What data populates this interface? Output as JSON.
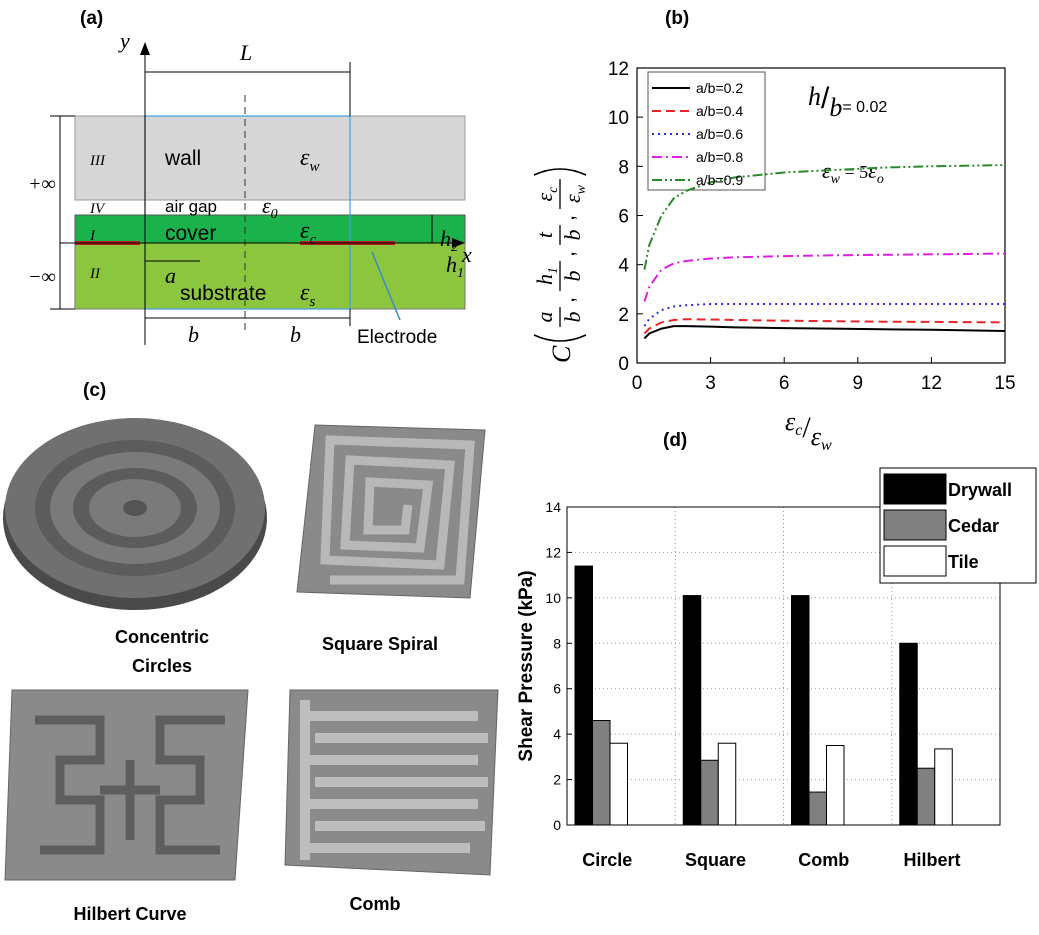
{
  "panel_labels": [
    "(a)",
    "(b)",
    "(c)",
    "(d)"
  ],
  "diagram": {
    "y_axis": "y",
    "x_axis": "x",
    "length": "L",
    "half_width": "a",
    "spacing_left": "b",
    "spacing_right": "b",
    "plus_inf": "+∞",
    "minus_inf": "−∞",
    "regions": [
      {
        "numeral": "III",
        "name": "wall",
        "permittivity": {
          "symbol": "ε",
          "sub": "w"
        }
      },
      {
        "numeral": "IV",
        "name": "air gap",
        "permittivity": {
          "symbol": "ε",
          "sub": "0"
        }
      },
      {
        "numeral": "I",
        "name": "cover",
        "permittivity": {
          "symbol": "ε",
          "sub": "c"
        }
      },
      {
        "numeral": "II",
        "name": "substrate",
        "permittivity": {
          "symbol": "ε",
          "sub": "s"
        }
      }
    ],
    "h2": {
      "symbol": "h",
      "sub": "2"
    },
    "h1": {
      "symbol": "h",
      "sub": "1"
    },
    "electrode": "Electrode"
  },
  "designs": [
    "Concentric",
    "Circles",
    "Square Spiral",
    "Hilbert Curve",
    "Comb"
  ],
  "chart_data": [
    {
      "type": "line",
      "x_label": {
        "num": "ε",
        "num_sub": "c",
        "slash": "/",
        "den": "ε",
        "den_sub": "w"
      },
      "y_label": {
        "function": "C",
        "separator": ",",
        "fractions": [
          {
            "num": "a",
            "den": "b"
          },
          {
            "num": "h",
            "num_sub": "1",
            "den": "b"
          },
          {
            "num": "t",
            "den": "b"
          },
          {
            "num": "ε",
            "num_sub": "c",
            "den": "ε",
            "den_sub": "w"
          }
        ]
      },
      "annotations": {
        "ratio": {
          "num": "h",
          "slash": "/",
          "den": "b",
          "rest": "= 0.02"
        },
        "wall_permittivity": {
          "symbol": "ε",
          "sub": "w",
          "rest": " = 5",
          "symbol2": "ε",
          "sub2": "o"
        }
      },
      "x": [
        0.3,
        0.5,
        1,
        1.5,
        2,
        3,
        4,
        6,
        8,
        10,
        12,
        15
      ],
      "series": [
        {
          "name": "a/b=0.2",
          "color": "#000000",
          "dash": "solid",
          "values": [
            1.0,
            1.2,
            1.4,
            1.5,
            1.5,
            1.48,
            1.45,
            1.42,
            1.4,
            1.37,
            1.35,
            1.3
          ]
        },
        {
          "name": "a/b=0.4",
          "color": "#e8262a",
          "dash": "dashed",
          "values": [
            1.2,
            1.4,
            1.65,
            1.75,
            1.78,
            1.77,
            1.75,
            1.72,
            1.7,
            1.68,
            1.67,
            1.65
          ]
        },
        {
          "name": "a/b=0.6",
          "color": "#2b2bd8",
          "dash": "dotted",
          "values": [
            1.5,
            1.8,
            2.15,
            2.3,
            2.35,
            2.4,
            2.4,
            2.4,
            2.4,
            2.4,
            2.4,
            2.4
          ]
        },
        {
          "name": "a/b=0.8",
          "color": "#e020e0",
          "dash": "dashdot",
          "values": [
            2.5,
            3.1,
            3.8,
            4.05,
            4.15,
            4.25,
            4.3,
            4.35,
            4.38,
            4.4,
            4.42,
            4.45
          ]
        },
        {
          "name": "a/b=0.9",
          "color": "#2a8a2a",
          "dash": "dashdotdot",
          "values": [
            3.8,
            4.8,
            6.0,
            6.7,
            7.0,
            7.35,
            7.55,
            7.75,
            7.85,
            7.95,
            8.0,
            8.05
          ]
        }
      ],
      "xlim": [
        0,
        15
      ],
      "xticks": [
        0,
        3,
        6,
        9,
        12,
        15
      ],
      "ylim": [
        0,
        12
      ],
      "yticks": [
        0,
        2,
        4,
        6,
        8,
        10,
        12
      ],
      "legend": "upper left"
    },
    {
      "type": "bar",
      "y_label": "Shear Pressure (kPa)",
      "categories": [
        "Circle",
        "Square",
        "Comb",
        "Hilbert"
      ],
      "series": [
        {
          "name": "Drywall",
          "color": "#000000",
          "values": [
            11.4,
            10.1,
            10.1,
            8.0
          ]
        },
        {
          "name": "Cedar",
          "color": "#808080",
          "values": [
            4.6,
            2.85,
            1.45,
            2.5
          ]
        },
        {
          "name": "Tile",
          "color": "#ffffff",
          "values": [
            3.6,
            3.6,
            3.5,
            3.35
          ]
        }
      ],
      "ylim": [
        0,
        14
      ],
      "yticks": [
        0,
        2,
        4,
        6,
        8,
        10,
        12,
        14
      ],
      "grid": true,
      "legend": "upper right"
    }
  ]
}
